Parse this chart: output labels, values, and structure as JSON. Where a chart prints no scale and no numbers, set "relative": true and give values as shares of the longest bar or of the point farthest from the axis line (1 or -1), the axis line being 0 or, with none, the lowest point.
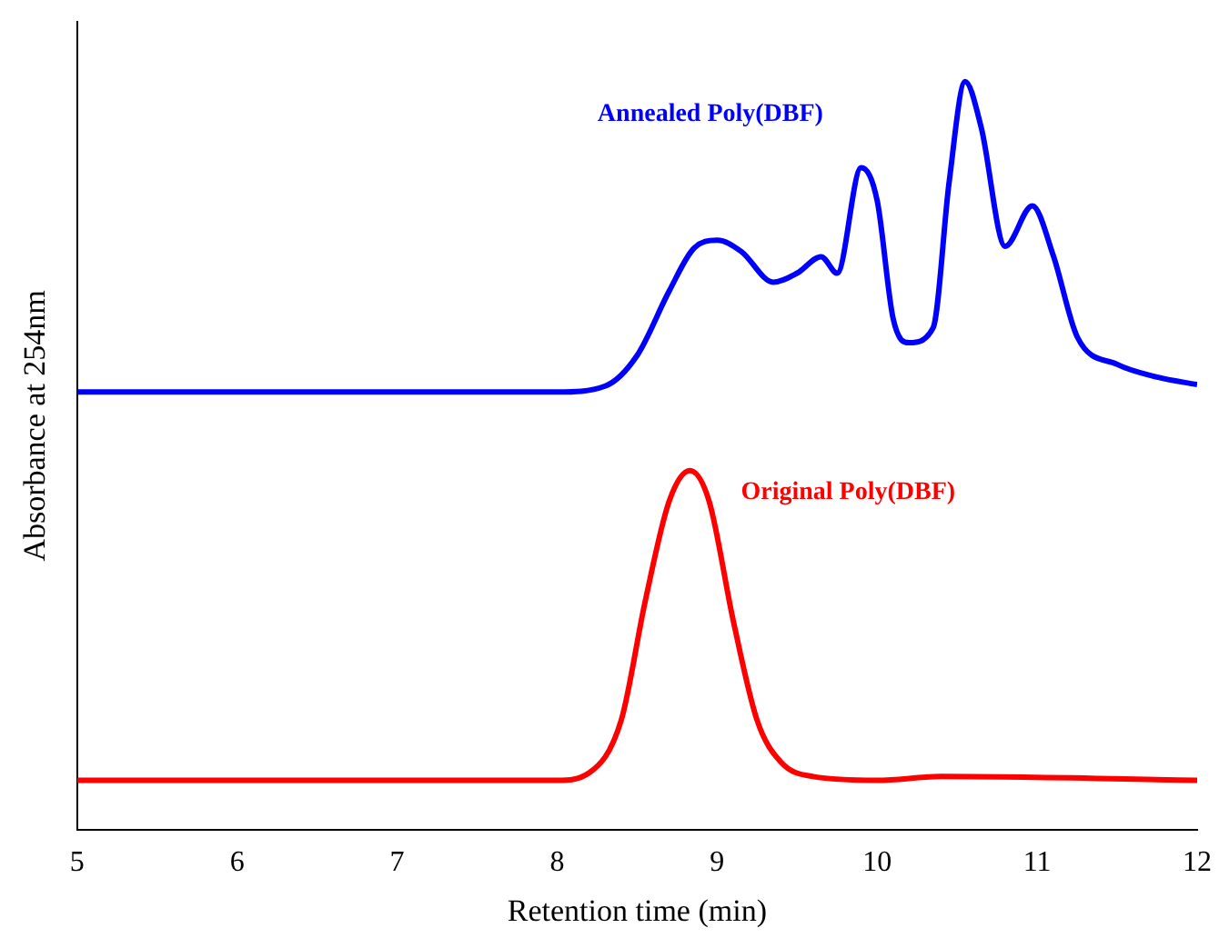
{
  "chart_data": {
    "type": "line",
    "relative": true,
    "xlabel": "Retention time (min)",
    "ylabel": "Absorbance at 254nm",
    "xlim": [
      5,
      12
    ],
    "xticks": [
      5,
      6,
      7,
      8,
      9,
      10,
      11,
      12
    ],
    "grid": false,
    "legend": false,
    "marker": "none",
    "series": [
      {
        "name": "Annealed Poly(DBF)",
        "color": "#0000ff",
        "x": [
          5,
          8,
          8.3,
          8.5,
          8.7,
          8.85,
          9,
          9.15,
          9.35,
          9.5,
          9.65,
          9.75,
          9.9,
          10,
          10.1,
          10.2,
          10.35,
          10.45,
          10.55,
          10.65,
          10.8,
          10.97,
          11.1,
          11.25,
          11.5,
          11.75,
          12
        ],
        "values": [
          0.585,
          0.585,
          0.593,
          0.634,
          0.72,
          0.776,
          0.788,
          0.773,
          0.732,
          0.744,
          0.766,
          0.744,
          0.885,
          0.841,
          0.683,
          0.651,
          0.671,
          0.866,
          1,
          0.939,
          0.78,
          0.834,
          0.768,
          0.659,
          0.622,
          0.605,
          0.595
        ]
      },
      {
        "name": "Original Poly(DBF)",
        "color": "#ff0000",
        "x": [
          5,
          8,
          8.2,
          8.4,
          8.55,
          8.7,
          8.83,
          8.95,
          9.1,
          9.25,
          9.4,
          9.6,
          10,
          10.4,
          12
        ],
        "values": [
          0.066,
          0.066,
          0.076,
          0.146,
          0.305,
          0.439,
          0.48,
          0.439,
          0.28,
          0.146,
          0.09,
          0.071,
          0.066,
          0.071,
          0.066
        ]
      }
    ]
  }
}
